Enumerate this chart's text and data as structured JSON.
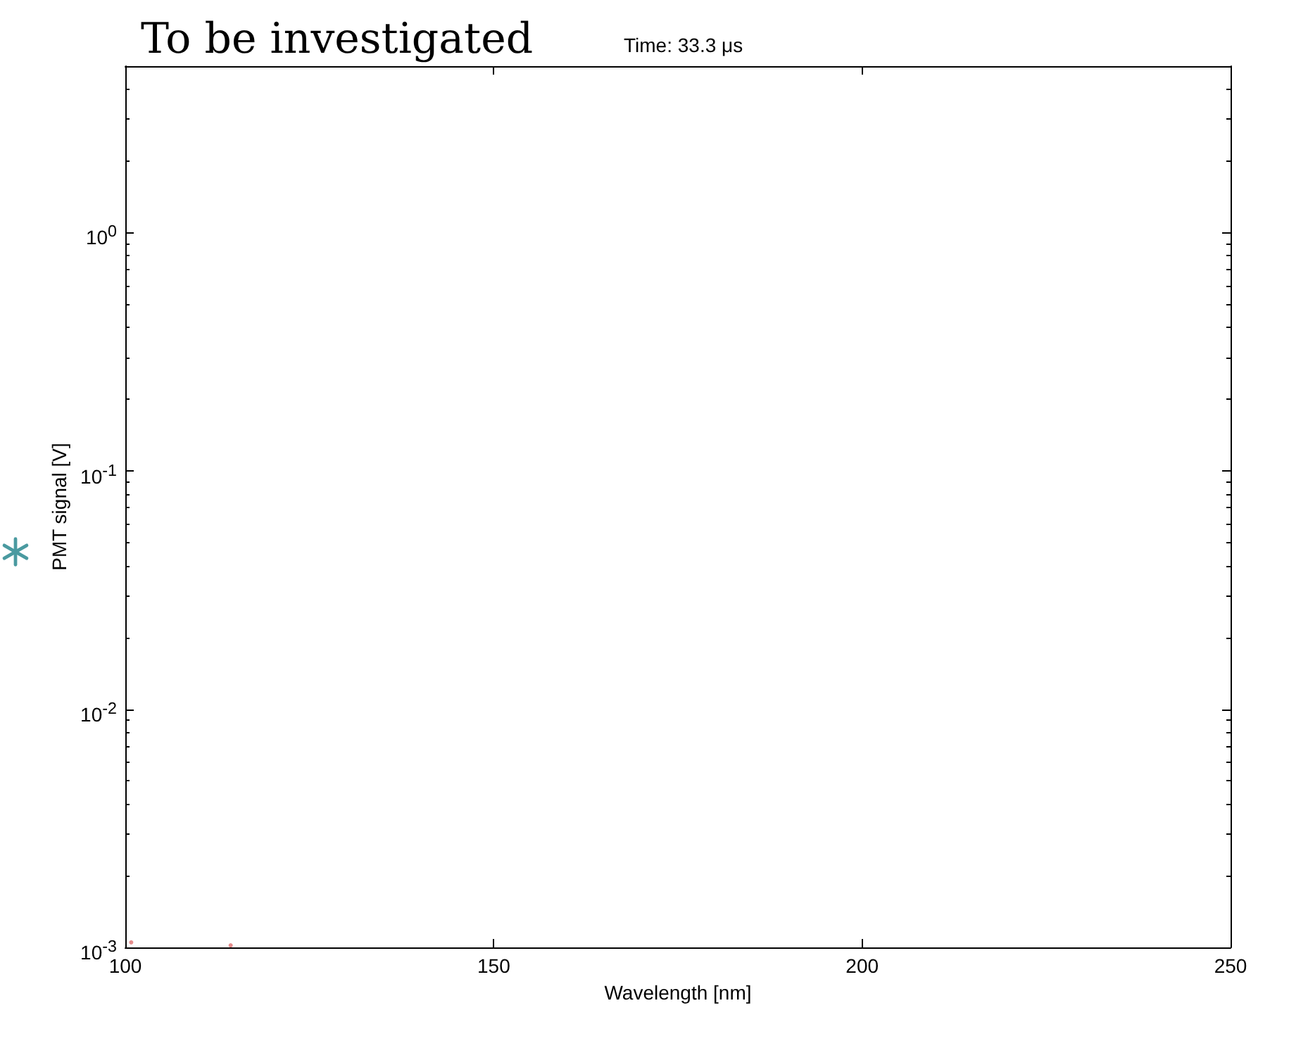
{
  "chart_data": {
    "type": "scatter",
    "title": "To be investigated",
    "subtitle": "Time: 33.3 μs",
    "xlabel": "Wavelength [nm]",
    "ylabel": "PMT signal [V]",
    "x": [
      100.8,
      114.3
    ],
    "series": [
      {
        "color": "#e07070",
        "values": [
          0.00105,
          0.00102
        ]
      }
    ],
    "marker": "circle",
    "log": "y",
    "grid": false,
    "xlim": [
      100,
      250
    ],
    "xticks": [
      100,
      150,
      200,
      250
    ],
    "ylim": [
      0.001,
      5
    ],
    "yticks": [
      {
        "value": 0.001,
        "label": "10$^{-3}$"
      },
      {
        "value": 0.01,
        "label": "10$^{-2}$"
      },
      {
        "value": 0.1,
        "label": "10$^{-1}$"
      },
      {
        "value": 1,
        "label": "10$^{0}$"
      }
    ]
  }
}
